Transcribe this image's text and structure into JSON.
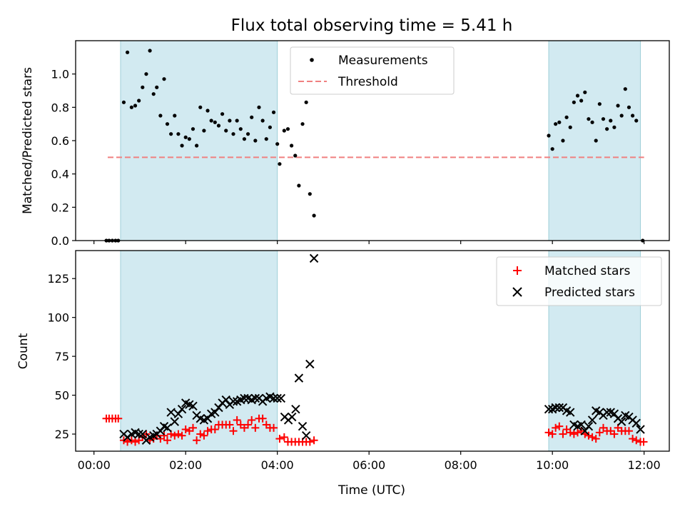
{
  "chart_data": [
    {
      "type": "scatter",
      "title": "Flux total observing time = 5.41 h",
      "xlabel": "",
      "ylabel": "Matched/Predicted stars",
      "x_unit": "hours UTC",
      "xlim": [
        -0.4,
        12.55
      ],
      "ylim": [
        0,
        1.2
      ],
      "y_ticks": [
        0.0,
        0.2,
        0.4,
        0.6,
        0.8,
        1.0
      ],
      "y_tick_labels": [
        "0.0",
        "0.2",
        "0.4",
        "0.6",
        "0.8",
        "1.0"
      ],
      "legend_position": "top-center",
      "shaded_intervals": [
        [
          0.58,
          4.0
        ],
        [
          9.92,
          11.92
        ]
      ],
      "threshold": {
        "name": "Threshold",
        "value": 0.5,
        "x_range": [
          0.3,
          12.0
        ],
        "color": "#f08080",
        "style": "dashed"
      },
      "series": [
        {
          "name": "Measurements",
          "marker": "dot",
          "color": "#000000",
          "points": [
            [
              0.27,
              0.0
            ],
            [
              0.33,
              0.0
            ],
            [
              0.4,
              0.0
            ],
            [
              0.47,
              0.0
            ],
            [
              0.53,
              0.0
            ],
            [
              0.65,
              0.83
            ],
            [
              0.73,
              1.13
            ],
            [
              0.82,
              0.8
            ],
            [
              0.9,
              0.81
            ],
            [
              0.98,
              0.84
            ],
            [
              1.06,
              0.92
            ],
            [
              1.14,
              1.0
            ],
            [
              1.22,
              1.14
            ],
            [
              1.3,
              0.88
            ],
            [
              1.37,
              0.92
            ],
            [
              1.45,
              0.75
            ],
            [
              1.53,
              0.97
            ],
            [
              1.6,
              0.7
            ],
            [
              1.68,
              0.64
            ],
            [
              1.76,
              0.75
            ],
            [
              1.84,
              0.64
            ],
            [
              1.92,
              0.57
            ],
            [
              2.0,
              0.62
            ],
            [
              2.08,
              0.61
            ],
            [
              2.16,
              0.67
            ],
            [
              2.24,
              0.57
            ],
            [
              2.32,
              0.8
            ],
            [
              2.4,
              0.66
            ],
            [
              2.48,
              0.78
            ],
            [
              2.56,
              0.72
            ],
            [
              2.64,
              0.71
            ],
            [
              2.72,
              0.69
            ],
            [
              2.8,
              0.76
            ],
            [
              2.88,
              0.66
            ],
            [
              2.96,
              0.72
            ],
            [
              3.04,
              0.64
            ],
            [
              3.12,
              0.72
            ],
            [
              3.2,
              0.67
            ],
            [
              3.28,
              0.61
            ],
            [
              3.36,
              0.64
            ],
            [
              3.44,
              0.74
            ],
            [
              3.52,
              0.6
            ],
            [
              3.6,
              0.8
            ],
            [
              3.68,
              0.72
            ],
            [
              3.76,
              0.61
            ],
            [
              3.84,
              0.68
            ],
            [
              3.92,
              0.77
            ],
            [
              4.0,
              0.58
            ],
            [
              4.05,
              0.46
            ],
            [
              4.15,
              0.66
            ],
            [
              4.23,
              0.67
            ],
            [
              4.31,
              0.57
            ],
            [
              4.39,
              0.51
            ],
            [
              4.47,
              0.33
            ],
            [
              4.55,
              0.7
            ],
            [
              4.63,
              0.83
            ],
            [
              4.71,
              0.28
            ],
            [
              4.8,
              0.15
            ],
            [
              9.92,
              0.63
            ],
            [
              10.0,
              0.55
            ],
            [
              10.07,
              0.7
            ],
            [
              10.15,
              0.71
            ],
            [
              10.23,
              0.6
            ],
            [
              10.31,
              0.74
            ],
            [
              10.39,
              0.68
            ],
            [
              10.47,
              0.83
            ],
            [
              10.55,
              0.87
            ],
            [
              10.63,
              0.84
            ],
            [
              10.71,
              0.89
            ],
            [
              10.79,
              0.73
            ],
            [
              10.87,
              0.71
            ],
            [
              10.95,
              0.6
            ],
            [
              11.03,
              0.82
            ],
            [
              11.11,
              0.73
            ],
            [
              11.19,
              0.67
            ],
            [
              11.27,
              0.72
            ],
            [
              11.35,
              0.68
            ],
            [
              11.43,
              0.81
            ],
            [
              11.51,
              0.75
            ],
            [
              11.59,
              0.91
            ],
            [
              11.67,
              0.8
            ],
            [
              11.75,
              0.75
            ],
            [
              11.83,
              0.72
            ],
            [
              11.97,
              0.0
            ]
          ]
        }
      ]
    },
    {
      "type": "scatter",
      "title": "",
      "xlabel": "Time (UTC)",
      "ylabel": "Count",
      "x_unit": "hours UTC",
      "xlim": [
        -0.4,
        12.55
      ],
      "ylim": [
        14,
        143
      ],
      "y_ticks": [
        25,
        50,
        75,
        100,
        125
      ],
      "y_tick_labels": [
        "25",
        "50",
        "75",
        "100",
        "125"
      ],
      "x_ticks": [
        0,
        2,
        4,
        6,
        8,
        10,
        12
      ],
      "x_tick_labels": [
        "00:00",
        "02:00",
        "04:00",
        "06:00",
        "08:00",
        "10:00",
        "12:00"
      ],
      "legend_position": "top-right",
      "shaded_intervals": [
        [
          0.58,
          4.0
        ],
        [
          9.92,
          11.92
        ]
      ],
      "series": [
        {
          "name": "Matched stars",
          "marker": "plus",
          "color": "#ff0000",
          "points": [
            [
              0.27,
              35
            ],
            [
              0.33,
              35
            ],
            [
              0.4,
              35
            ],
            [
              0.47,
              35
            ],
            [
              0.53,
              35
            ],
            [
              0.65,
              21
            ],
            [
              0.73,
              20
            ],
            [
              0.82,
              21
            ],
            [
              0.9,
              20
            ],
            [
              0.98,
              21
            ],
            [
              1.06,
              23
            ],
            [
              1.14,
              25
            ],
            [
              1.22,
              21
            ],
            [
              1.3,
              22
            ],
            [
              1.37,
              24
            ],
            [
              1.45,
              22
            ],
            [
              1.53,
              24
            ],
            [
              1.6,
              21
            ],
            [
              1.68,
              25
            ],
            [
              1.76,
              24
            ],
            [
              1.84,
              25
            ],
            [
              1.92,
              24
            ],
            [
              2.0,
              28
            ],
            [
              2.08,
              27
            ],
            [
              2.16,
              29
            ],
            [
              2.24,
              21
            ],
            [
              2.32,
              25
            ],
            [
              2.4,
              24
            ],
            [
              2.48,
              27
            ],
            [
              2.56,
              28
            ],
            [
              2.64,
              28
            ],
            [
              2.72,
              31
            ],
            [
              2.8,
              31
            ],
            [
              2.88,
              31
            ],
            [
              2.96,
              31
            ],
            [
              3.04,
              27
            ],
            [
              3.12,
              34
            ],
            [
              3.2,
              31
            ],
            [
              3.28,
              29
            ],
            [
              3.36,
              31
            ],
            [
              3.44,
              34
            ],
            [
              3.52,
              29
            ],
            [
              3.6,
              35
            ],
            [
              3.68,
              35
            ],
            [
              3.76,
              31
            ],
            [
              3.84,
              29
            ],
            [
              3.92,
              29
            ],
            [
              4.05,
              22
            ],
            [
              4.15,
              23
            ],
            [
              4.23,
              20
            ],
            [
              4.31,
              20
            ],
            [
              4.39,
              20
            ],
            [
              4.47,
              20
            ],
            [
              4.55,
              20
            ],
            [
              4.63,
              20
            ],
            [
              4.71,
              20
            ],
            [
              4.8,
              21
            ],
            [
              9.92,
              26
            ],
            [
              10.0,
              25
            ],
            [
              10.07,
              29
            ],
            [
              10.15,
              30
            ],
            [
              10.23,
              25
            ],
            [
              10.31,
              28
            ],
            [
              10.39,
              26
            ],
            [
              10.47,
              25
            ],
            [
              10.55,
              26
            ],
            [
              10.63,
              27
            ],
            [
              10.71,
              25
            ],
            [
              10.79,
              24
            ],
            [
              10.87,
              23
            ],
            [
              10.95,
              22
            ],
            [
              11.03,
              26
            ],
            [
              11.11,
              29
            ],
            [
              11.19,
              27
            ],
            [
              11.27,
              27
            ],
            [
              11.35,
              25
            ],
            [
              11.43,
              29
            ],
            [
              11.51,
              27
            ],
            [
              11.59,
              27
            ],
            [
              11.67,
              27
            ],
            [
              11.75,
              22
            ],
            [
              11.83,
              21
            ],
            [
              11.92,
              20
            ],
            [
              11.99,
              20
            ]
          ]
        },
        {
          "name": "Predicted stars",
          "marker": "x",
          "color": "#000000",
          "points": [
            [
              0.65,
              25
            ],
            [
              0.73,
              23
            ],
            [
              0.82,
              25
            ],
            [
              0.9,
              26
            ],
            [
              0.98,
              25
            ],
            [
              1.06,
              25
            ],
            [
              1.14,
              21
            ],
            [
              1.22,
              23
            ],
            [
              1.3,
              24
            ],
            [
              1.37,
              25
            ],
            [
              1.45,
              27
            ],
            [
              1.53,
              30
            ],
            [
              1.6,
              29
            ],
            [
              1.68,
              39
            ],
            [
              1.76,
              33
            ],
            [
              1.84,
              38
            ],
            [
              1.92,
              41
            ],
            [
              2.0,
              45
            ],
            [
              2.08,
              44
            ],
            [
              2.16,
              43
            ],
            [
              2.24,
              37
            ],
            [
              2.32,
              35
            ],
            [
              2.4,
              34
            ],
            [
              2.48,
              35
            ],
            [
              2.56,
              38
            ],
            [
              2.64,
              39
            ],
            [
              2.72,
              42
            ],
            [
              2.8,
              45
            ],
            [
              2.88,
              47
            ],
            [
              2.96,
              44
            ],
            [
              3.04,
              46
            ],
            [
              3.12,
              46
            ],
            [
              3.2,
              47
            ],
            [
              3.28,
              48
            ],
            [
              3.36,
              48
            ],
            [
              3.44,
              47
            ],
            [
              3.52,
              48
            ],
            [
              3.6,
              48
            ],
            [
              3.68,
              46
            ],
            [
              3.76,
              48
            ],
            [
              3.84,
              49
            ],
            [
              3.92,
              48
            ],
            [
              4.0,
              48
            ],
            [
              4.08,
              48
            ],
            [
              4.16,
              36
            ],
            [
              4.24,
              34
            ],
            [
              4.32,
              36
            ],
            [
              4.4,
              41
            ],
            [
              4.47,
              61
            ],
            [
              4.55,
              30
            ],
            [
              4.63,
              24
            ],
            [
              4.71,
              70
            ],
            [
              4.8,
              138
            ],
            [
              9.92,
              41
            ],
            [
              10.0,
              41
            ],
            [
              10.07,
              42
            ],
            [
              10.15,
              42
            ],
            [
              10.23,
              42
            ],
            [
              10.31,
              40
            ],
            [
              10.39,
              39
            ],
            [
              10.47,
              31
            ],
            [
              10.55,
              30
            ],
            [
              10.63,
              31
            ],
            [
              10.71,
              27
            ],
            [
              10.79,
              30
            ],
            [
              10.87,
              34
            ],
            [
              10.95,
              40
            ],
            [
              11.03,
              39
            ],
            [
              11.11,
              37
            ],
            [
              11.19,
              39
            ],
            [
              11.27,
              39
            ],
            [
              11.35,
              38
            ],
            [
              11.43,
              35
            ],
            [
              11.51,
              33
            ],
            [
              11.59,
              37
            ],
            [
              11.67,
              36
            ],
            [
              11.75,
              34
            ],
            [
              11.83,
              32
            ],
            [
              11.92,
              28
            ]
          ]
        }
      ]
    }
  ]
}
